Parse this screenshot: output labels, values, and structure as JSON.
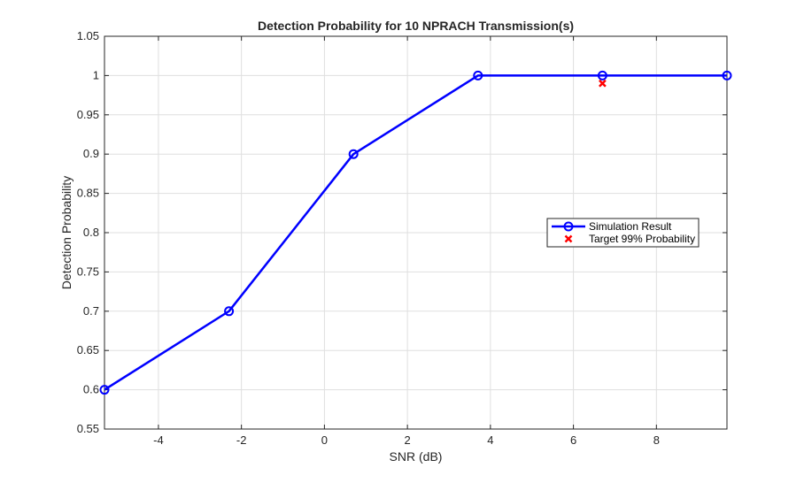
{
  "chart_data": {
    "type": "line",
    "title": "Detection Probability for 10 NPRACH Transmission(s)",
    "xlabel": "SNR (dB)",
    "ylabel": "Detection Probability",
    "xlim": [
      -5.3,
      9.7
    ],
    "ylim": [
      0.55,
      1.05
    ],
    "xticks": [
      "-4",
      "-2",
      "0",
      "2",
      "4",
      "6",
      "8"
    ],
    "yticks": [
      "0.55",
      "0.6",
      "0.65",
      "0.7",
      "0.75",
      "0.8",
      "0.85",
      "0.9",
      "0.95",
      "1",
      "1.05"
    ],
    "grid": true,
    "legend_position": "right",
    "series": [
      {
        "name": "Simulation Result",
        "style": "line-circle",
        "color": "#0000ff",
        "x": [
          -5.3,
          -2.3,
          0.7,
          3.7,
          6.7,
          9.7
        ],
        "y": [
          0.6,
          0.7,
          0.9,
          1.0,
          1.0,
          1.0
        ]
      },
      {
        "name": "Target 99% Probability",
        "style": "x-marker",
        "color": "#ff0000",
        "x": [
          6.7
        ],
        "y": [
          0.99
        ]
      }
    ]
  }
}
